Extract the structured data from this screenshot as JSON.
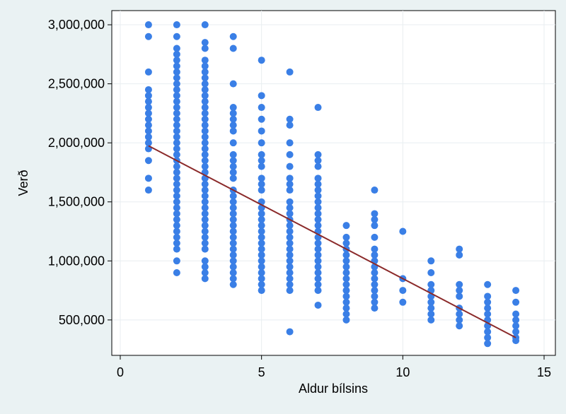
{
  "chart_data": {
    "type": "scatter",
    "title": "",
    "xlabel": "Aldur bílsins",
    "ylabel": "Verð",
    "xlim": [
      -0.3,
      15.4
    ],
    "ylim": [
      200000,
      3120000
    ],
    "grid": true,
    "x_ticks": [
      0,
      5,
      10,
      15
    ],
    "x_tick_labels": [
      "0",
      "5",
      "10",
      "15"
    ],
    "y_ticks": [
      500000,
      1000000,
      1500000,
      2000000,
      2500000,
      3000000
    ],
    "y_tick_labels": [
      "500,000",
      "1,000,000",
      "1,500,000",
      "2,000,000",
      "2,500,000",
      "3,000,000"
    ],
    "colors": {
      "points": "#3a7fe6",
      "fit_line": "#8b2a2a",
      "plot_bg": "#ffffff",
      "outer_bg": "#eaf2f3",
      "grid": "#e8eef0"
    },
    "series": [
      {
        "type": "scatter",
        "points": [
          [
            1,
            3000000
          ],
          [
            1,
            2900000
          ],
          [
            1,
            2600000
          ],
          [
            1,
            2450000
          ],
          [
            1,
            2400000
          ],
          [
            1,
            2350000
          ],
          [
            1,
            2300000
          ],
          [
            1,
            2250000
          ],
          [
            1,
            2200000
          ],
          [
            1,
            2150000
          ],
          [
            1,
            2100000
          ],
          [
            1,
            2050000
          ],
          [
            1,
            2000000
          ],
          [
            1,
            1950000
          ],
          [
            1,
            1850000
          ],
          [
            1,
            1700000
          ],
          [
            1,
            1600000
          ],
          [
            2,
            3000000
          ],
          [
            2,
            2900000
          ],
          [
            2,
            2800000
          ],
          [
            2,
            2750000
          ],
          [
            2,
            2700000
          ],
          [
            2,
            2650000
          ],
          [
            2,
            2600000
          ],
          [
            2,
            2550000
          ],
          [
            2,
            2500000
          ],
          [
            2,
            2450000
          ],
          [
            2,
            2400000
          ],
          [
            2,
            2350000
          ],
          [
            2,
            2300000
          ],
          [
            2,
            2250000
          ],
          [
            2,
            2200000
          ],
          [
            2,
            2150000
          ],
          [
            2,
            2100000
          ],
          [
            2,
            2050000
          ],
          [
            2,
            2000000
          ],
          [
            2,
            1950000
          ],
          [
            2,
            1900000
          ],
          [
            2,
            1850000
          ],
          [
            2,
            1800000
          ],
          [
            2,
            1750000
          ],
          [
            2,
            1700000
          ],
          [
            2,
            1650000
          ],
          [
            2,
            1600000
          ],
          [
            2,
            1550000
          ],
          [
            2,
            1500000
          ],
          [
            2,
            1450000
          ],
          [
            2,
            1400000
          ],
          [
            2,
            1350000
          ],
          [
            2,
            1300000
          ],
          [
            2,
            1250000
          ],
          [
            2,
            1200000
          ],
          [
            2,
            1150000
          ],
          [
            2,
            1100000
          ],
          [
            2,
            1000000
          ],
          [
            2,
            900000
          ],
          [
            3,
            3000000
          ],
          [
            3,
            2850000
          ],
          [
            3,
            2800000
          ],
          [
            3,
            2700000
          ],
          [
            3,
            2650000
          ],
          [
            3,
            2600000
          ],
          [
            3,
            2550000
          ],
          [
            3,
            2500000
          ],
          [
            3,
            2450000
          ],
          [
            3,
            2400000
          ],
          [
            3,
            2350000
          ],
          [
            3,
            2300000
          ],
          [
            3,
            2250000
          ],
          [
            3,
            2200000
          ],
          [
            3,
            2150000
          ],
          [
            3,
            2100000
          ],
          [
            3,
            2050000
          ],
          [
            3,
            2000000
          ],
          [
            3,
            1950000
          ],
          [
            3,
            1900000
          ],
          [
            3,
            1850000
          ],
          [
            3,
            1800000
          ],
          [
            3,
            1750000
          ],
          [
            3,
            1700000
          ],
          [
            3,
            1650000
          ],
          [
            3,
            1600000
          ],
          [
            3,
            1550000
          ],
          [
            3,
            1500000
          ],
          [
            3,
            1450000
          ],
          [
            3,
            1400000
          ],
          [
            3,
            1350000
          ],
          [
            3,
            1300000
          ],
          [
            3,
            1250000
          ],
          [
            3,
            1200000
          ],
          [
            3,
            1150000
          ],
          [
            3,
            1100000
          ],
          [
            3,
            1000000
          ],
          [
            3,
            950000
          ],
          [
            3,
            900000
          ],
          [
            3,
            850000
          ],
          [
            4,
            2900000
          ],
          [
            4,
            2800000
          ],
          [
            4,
            2500000
          ],
          [
            4,
            2300000
          ],
          [
            4,
            2250000
          ],
          [
            4,
            2200000
          ],
          [
            4,
            2150000
          ],
          [
            4,
            2100000
          ],
          [
            4,
            2000000
          ],
          [
            4,
            1900000
          ],
          [
            4,
            1850000
          ],
          [
            4,
            1800000
          ],
          [
            4,
            1750000
          ],
          [
            4,
            1700000
          ],
          [
            4,
            1600000
          ],
          [
            4,
            1550000
          ],
          [
            4,
            1500000
          ],
          [
            4,
            1450000
          ],
          [
            4,
            1400000
          ],
          [
            4,
            1350000
          ],
          [
            4,
            1300000
          ],
          [
            4,
            1250000
          ],
          [
            4,
            1200000
          ],
          [
            4,
            1150000
          ],
          [
            4,
            1100000
          ],
          [
            4,
            1050000
          ],
          [
            4,
            1000000
          ],
          [
            4,
            950000
          ],
          [
            4,
            900000
          ],
          [
            4,
            850000
          ],
          [
            4,
            800000
          ],
          [
            5,
            2700000
          ],
          [
            5,
            2400000
          ],
          [
            5,
            2300000
          ],
          [
            5,
            2200000
          ],
          [
            5,
            2100000
          ],
          [
            5,
            2000000
          ],
          [
            5,
            1900000
          ],
          [
            5,
            1850000
          ],
          [
            5,
            1800000
          ],
          [
            5,
            1700000
          ],
          [
            5,
            1650000
          ],
          [
            5,
            1600000
          ],
          [
            5,
            1500000
          ],
          [
            5,
            1450000
          ],
          [
            5,
            1400000
          ],
          [
            5,
            1350000
          ],
          [
            5,
            1300000
          ],
          [
            5,
            1250000
          ],
          [
            5,
            1200000
          ],
          [
            5,
            1150000
          ],
          [
            5,
            1100000
          ],
          [
            5,
            1050000
          ],
          [
            5,
            1000000
          ],
          [
            5,
            950000
          ],
          [
            5,
            900000
          ],
          [
            5,
            850000
          ],
          [
            5,
            800000
          ],
          [
            5,
            750000
          ],
          [
            6,
            2600000
          ],
          [
            6,
            2200000
          ],
          [
            6,
            2150000
          ],
          [
            6,
            2000000
          ],
          [
            6,
            1900000
          ],
          [
            6,
            1800000
          ],
          [
            6,
            1700000
          ],
          [
            6,
            1650000
          ],
          [
            6,
            1600000
          ],
          [
            6,
            1500000
          ],
          [
            6,
            1450000
          ],
          [
            6,
            1400000
          ],
          [
            6,
            1350000
          ],
          [
            6,
            1300000
          ],
          [
            6,
            1250000
          ],
          [
            6,
            1200000
          ],
          [
            6,
            1150000
          ],
          [
            6,
            1100000
          ],
          [
            6,
            1050000
          ],
          [
            6,
            1000000
          ],
          [
            6,
            950000
          ],
          [
            6,
            900000
          ],
          [
            6,
            850000
          ],
          [
            6,
            800000
          ],
          [
            6,
            750000
          ],
          [
            6,
            400000
          ],
          [
            7,
            2300000
          ],
          [
            7,
            1900000
          ],
          [
            7,
            1850000
          ],
          [
            7,
            1800000
          ],
          [
            7,
            1700000
          ],
          [
            7,
            1650000
          ],
          [
            7,
            1600000
          ],
          [
            7,
            1550000
          ],
          [
            7,
            1500000
          ],
          [
            7,
            1450000
          ],
          [
            7,
            1400000
          ],
          [
            7,
            1350000
          ],
          [
            7,
            1300000
          ],
          [
            7,
            1250000
          ],
          [
            7,
            1200000
          ],
          [
            7,
            1150000
          ],
          [
            7,
            1100000
          ],
          [
            7,
            1050000
          ],
          [
            7,
            1000000
          ],
          [
            7,
            950000
          ],
          [
            7,
            900000
          ],
          [
            7,
            850000
          ],
          [
            7,
            800000
          ],
          [
            7,
            750000
          ],
          [
            7,
            625000
          ],
          [
            8,
            1300000
          ],
          [
            8,
            1200000
          ],
          [
            8,
            1150000
          ],
          [
            8,
            1100000
          ],
          [
            8,
            1050000
          ],
          [
            8,
            1000000
          ],
          [
            8,
            950000
          ],
          [
            8,
            900000
          ],
          [
            8,
            850000
          ],
          [
            8,
            800000
          ],
          [
            8,
            750000
          ],
          [
            8,
            700000
          ],
          [
            8,
            650000
          ],
          [
            8,
            600000
          ],
          [
            8,
            550000
          ],
          [
            8,
            500000
          ],
          [
            9,
            1600000
          ],
          [
            9,
            1400000
          ],
          [
            9,
            1350000
          ],
          [
            9,
            1300000
          ],
          [
            9,
            1200000
          ],
          [
            9,
            1100000
          ],
          [
            9,
            1050000
          ],
          [
            9,
            1000000
          ],
          [
            9,
            950000
          ],
          [
            9,
            900000
          ],
          [
            9,
            850000
          ],
          [
            9,
            800000
          ],
          [
            9,
            750000
          ],
          [
            9,
            700000
          ],
          [
            9,
            650000
          ],
          [
            9,
            600000
          ],
          [
            10,
            1250000
          ],
          [
            10,
            850000
          ],
          [
            10,
            750000
          ],
          [
            10,
            650000
          ],
          [
            11,
            1000000
          ],
          [
            11,
            900000
          ],
          [
            11,
            800000
          ],
          [
            11,
            750000
          ],
          [
            11,
            700000
          ],
          [
            11,
            650000
          ],
          [
            11,
            600000
          ],
          [
            11,
            550000
          ],
          [
            11,
            500000
          ],
          [
            12,
            1100000
          ],
          [
            12,
            1050000
          ],
          [
            12,
            800000
          ],
          [
            12,
            750000
          ],
          [
            12,
            700000
          ],
          [
            12,
            600000
          ],
          [
            12,
            550000
          ],
          [
            12,
            500000
          ],
          [
            12,
            450000
          ],
          [
            13,
            800000
          ],
          [
            13,
            700000
          ],
          [
            13,
            650000
          ],
          [
            13,
            600000
          ],
          [
            13,
            550000
          ],
          [
            13,
            500000
          ],
          [
            13,
            450000
          ],
          [
            13,
            400000
          ],
          [
            13,
            350000
          ],
          [
            13,
            300000
          ],
          [
            14,
            750000
          ],
          [
            14,
            650000
          ],
          [
            14,
            550000
          ],
          [
            14,
            500000
          ],
          [
            14,
            450000
          ],
          [
            14,
            400000
          ],
          [
            14,
            350000
          ],
          [
            14,
            325000
          ]
        ]
      },
      {
        "type": "line",
        "points": [
          [
            1,
            1975000
          ],
          [
            14,
            350000
          ]
        ]
      }
    ]
  }
}
